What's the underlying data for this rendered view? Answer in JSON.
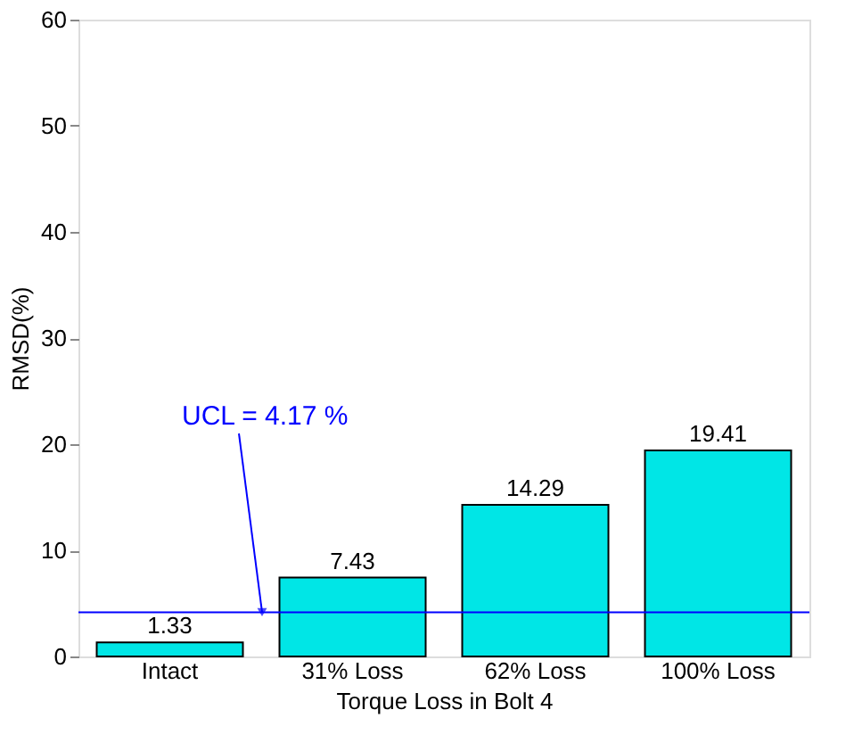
{
  "chart_data": {
    "type": "bar",
    "xlabel": "Torque Loss in Bolt 4",
    "ylabel": "RMSD(%)",
    "categories": [
      "Intact",
      "31% Loss",
      "62% Loss",
      "100% Loss"
    ],
    "values": [
      1.33,
      7.43,
      14.29,
      19.41
    ],
    "color": "#00e6e6",
    "ylim": [
      0,
      60
    ],
    "yticks": [
      0,
      10,
      20,
      30,
      40,
      50,
      60
    ],
    "grid": false,
    "data_labels": true,
    "ref_lines": [
      {
        "axis": "y",
        "value": 4.17,
        "label": "UCL = 4.17 %",
        "color": "#0000ff"
      }
    ]
  }
}
